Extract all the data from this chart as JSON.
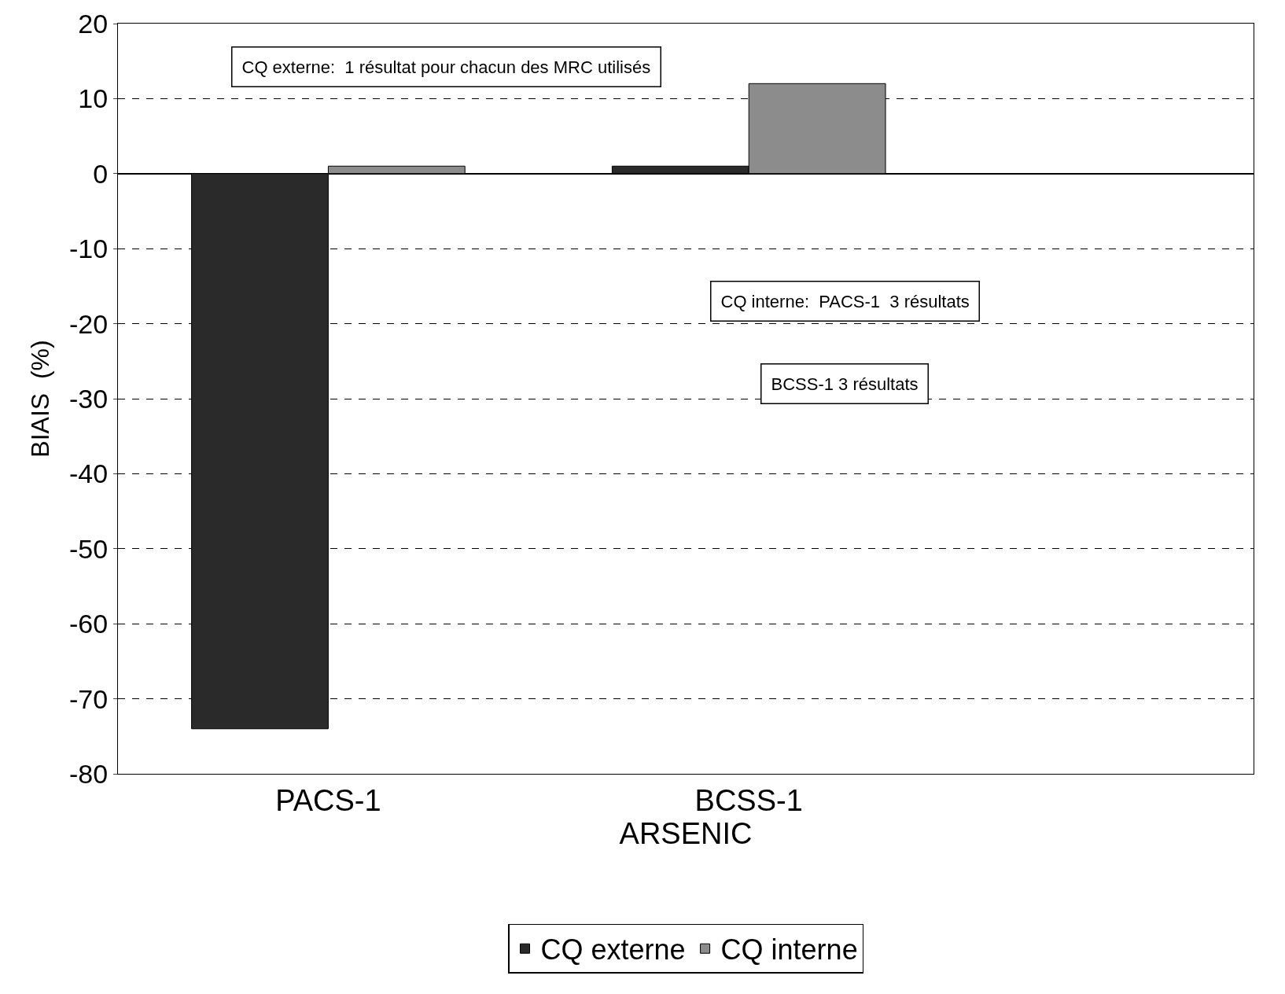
{
  "chart_data": {
    "type": "bar",
    "xlabel": "ARSENIC",
    "ylabel": "BIAIS  (%)",
    "categories": [
      "PACS-1",
      "BCSS-1"
    ],
    "series": [
      {
        "name": "CQ externe",
        "color": "#2a2a2a",
        "values": [
          -74,
          1
        ]
      },
      {
        "name": "CQ interne",
        "color": "#8c8c8c",
        "values": [
          1,
          12
        ]
      }
    ],
    "ylim": [
      -80,
      20
    ],
    "yticks": [
      -80,
      -70,
      -60,
      -50,
      -40,
      -30,
      -20,
      -10,
      0,
      10,
      20
    ],
    "grid": "y",
    "legend": "bottom",
    "annotations": [
      "CQ externe:  1 résultat pour chacun des MRC utilisés",
      "CQ interne:  PACS-1  3 résultats",
      "BCSS-1 3 résultats"
    ]
  }
}
